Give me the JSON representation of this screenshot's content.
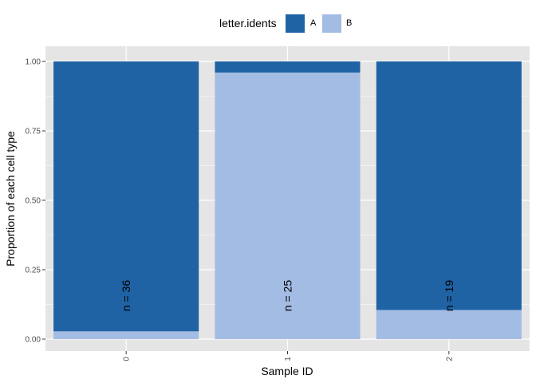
{
  "chart_data": {
    "type": "bar",
    "stacked": true,
    "categories": [
      "0",
      "1",
      "2"
    ],
    "series": [
      {
        "name": "A",
        "values": [
          0.972,
          0.04,
          0.895
        ],
        "color": "#1F63A5"
      },
      {
        "name": "B",
        "values": [
          0.028,
          0.96,
          0.105
        ],
        "color": "#A2BCE3"
      }
    ],
    "annotations": [
      "n = 36",
      "n = 25",
      "n = 19"
    ],
    "xlabel": "Sample ID",
    "ylabel": "Proportion of each cell type",
    "ylim": [
      0,
      1
    ],
    "yticks": [
      "0.00",
      "0.25",
      "0.50",
      "0.75",
      "1.00"
    ],
    "legend": {
      "title": "letter.idents",
      "position": "top"
    },
    "grid": true,
    "panel_color": "#E5E5E5"
  }
}
